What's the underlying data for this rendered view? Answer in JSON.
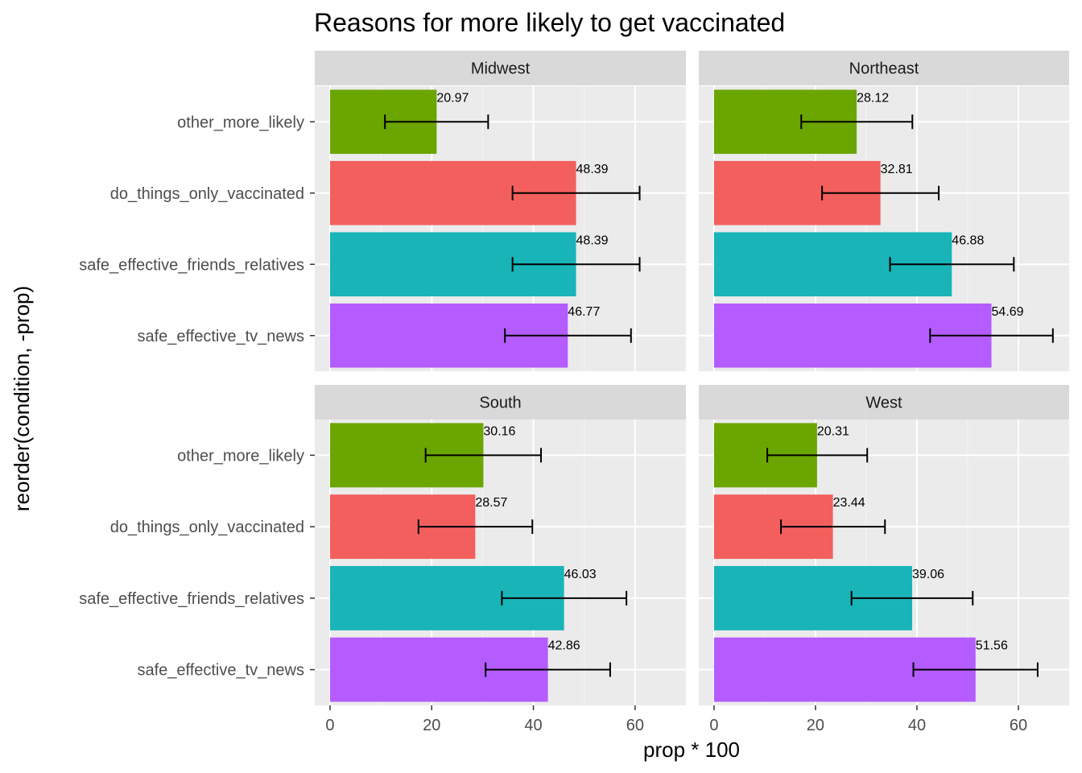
{
  "chart_data": {
    "type": "bar",
    "orientation": "horizontal",
    "title": "Reasons for more likely to get vaccinated",
    "xlabel": "prop * 100",
    "ylabel": "reorder(condition, -prop)",
    "xlim": [
      -3,
      70
    ],
    "x_ticks": [
      0,
      20,
      40,
      60
    ],
    "x_tick_labels": [
      "0",
      "20",
      "40",
      "60"
    ],
    "grid": true,
    "legend": "none",
    "categories": [
      "other_more_likely",
      "do_things_only_vaccinated",
      "safe_effective_friends_relatives",
      "safe_effective_tv_news"
    ],
    "category_colors": [
      "#6BA500",
      "#F25F5C",
      "#19B4B8",
      "#B45CFF"
    ],
    "panels": [
      {
        "name": "Midwest",
        "values": [
          20.97,
          48.39,
          48.39,
          46.77
        ],
        "value_labels": [
          "20.97",
          "48.39",
          "48.39",
          "46.77"
        ],
        "error_low": [
          10.8,
          35.9,
          35.9,
          34.4
        ],
        "error_high": [
          31.1,
          60.9,
          60.9,
          59.2
        ]
      },
      {
        "name": "Northeast",
        "values": [
          28.12,
          32.81,
          46.88,
          54.69
        ],
        "value_labels": [
          "28.12",
          "32.81",
          "46.88",
          "54.69"
        ],
        "error_low": [
          17.2,
          21.3,
          34.7,
          42.6
        ],
        "error_high": [
          39.1,
          44.3,
          59.1,
          66.8
        ]
      },
      {
        "name": "South",
        "values": [
          30.16,
          28.57,
          46.03,
          42.86
        ],
        "value_labels": [
          "30.16",
          "28.57",
          "46.03",
          "42.86"
        ],
        "error_low": [
          18.8,
          17.4,
          33.8,
          30.6
        ],
        "error_high": [
          41.5,
          39.8,
          58.3,
          55.1
        ]
      },
      {
        "name": "West",
        "values": [
          20.31,
          23.44,
          39.06,
          51.56
        ],
        "value_labels": [
          "20.31",
          "23.44",
          "39.06",
          "51.56"
        ],
        "error_low": [
          10.5,
          13.2,
          27.1,
          39.3
        ],
        "error_high": [
          30.2,
          33.7,
          51.0,
          63.8
        ]
      }
    ]
  }
}
